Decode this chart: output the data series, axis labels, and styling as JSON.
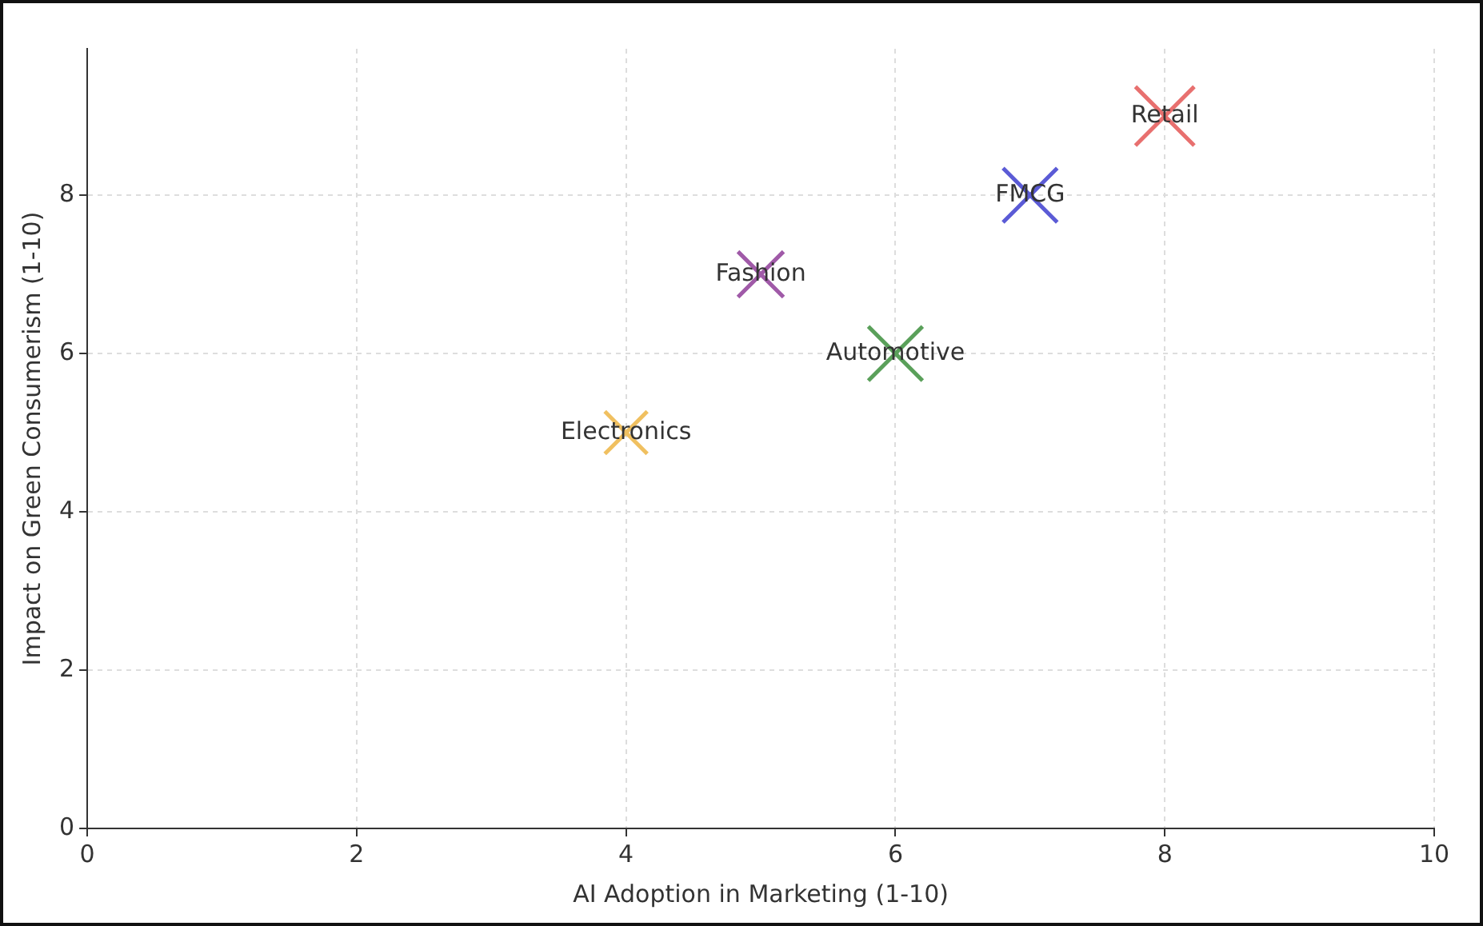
{
  "chart_data": {
    "type": "bubble",
    "xlabel": "AI Adoption in Marketing (1-10)",
    "ylabel": "Impact on Green Consumerism (1-10)",
    "xlim": [
      0,
      10
    ],
    "ylim": [
      0,
      9.85
    ],
    "xticks": [
      0,
      2,
      4,
      6,
      8,
      10
    ],
    "yticks": [
      0,
      2,
      4,
      6,
      8
    ],
    "grid": true,
    "marker": "cross",
    "legend": false,
    "series": [
      {
        "name": "Retail",
        "color": "#e8706f",
        "x": [
          8
        ],
        "values": [
          9
        ],
        "sizes": [
          1
        ]
      },
      {
        "name": "FMCG",
        "color": "#5b5bd6",
        "x": [
          7
        ],
        "values": [
          8
        ],
        "sizes": [
          0.85
        ]
      },
      {
        "name": "Fashion",
        "color": "#a05aa8",
        "x": [
          5
        ],
        "values": [
          7
        ],
        "sizes": [
          0.6
        ]
      },
      {
        "name": "Automotive",
        "color": "#5aa05a",
        "x": [
          6
        ],
        "values": [
          6
        ],
        "sizes": [
          0.85
        ]
      },
      {
        "name": "Electronics",
        "color": "#f0c060",
        "x": [
          4
        ],
        "values": [
          5
        ],
        "sizes": [
          0.52
        ]
      }
    ]
  }
}
